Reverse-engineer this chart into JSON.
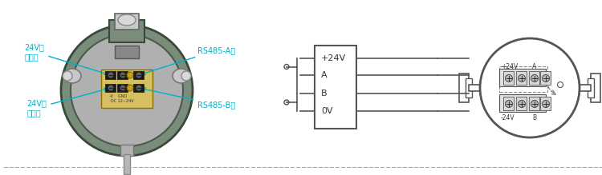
{
  "bg_color": "#ffffff",
  "lc": "#555555",
  "lc2": "#333333",
  "cyan": "#00b0c8",
  "box_labels": [
    "+24V",
    "A",
    "B",
    "0V"
  ],
  "device_labels": {
    "pos_power_text": "24V电\n源正极",
    "neg_power_text": "24V电\n源负极",
    "rs485a_text": "RS485-A极",
    "rs485b_text": "RS485-B极"
  },
  "right_labels_top": "+24V   A",
  "right_labels_bot": "-24V   B",
  "dashed_color": "#aaaaaa",
  "gray_device": "#7a8c7a",
  "gray_light": "#9aab9a",
  "gray_inner": "#b0b0b0",
  "yellow_board": "#d4c060",
  "terminal_dark": "#2a2a2a",
  "terminal_gold": "#c8a020"
}
